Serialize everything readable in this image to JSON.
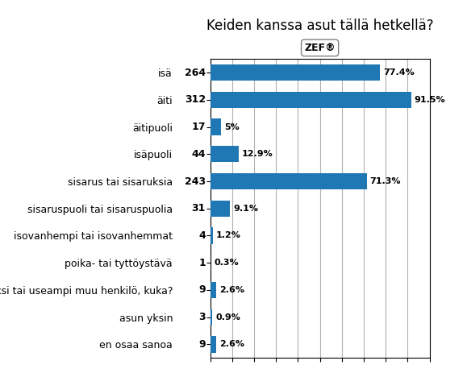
{
  "chart_data": {
    "type": "bar",
    "orientation": "horizontal",
    "title": "Keiden kanssa asut tällä hetkellä?",
    "categories": [
      "isä",
      "äiti",
      "äitipuoli",
      "isäpuoli",
      "sisarus tai sisaruksia",
      "sisaruspuoli tai sisaruspuolia",
      "isovanhempi tai isovanhemmat",
      "poika- tai tyttöystävä",
      "yksi tai useampi muu henkilö, kuka?",
      "asun yksin",
      "en osaa sanoa"
    ],
    "values": [
      77.4,
      91.5,
      5.0,
      12.9,
      71.3,
      9.1,
      1.2,
      0.3,
      2.6,
      0.9,
      2.6
    ],
    "value_labels": [
      "77.4%",
      "91.5%",
      "5%",
      "12.9%",
      "71.3%",
      "9.1%",
      "1.2%",
      "0.3%",
      "2.6%",
      "0.9%",
      "2.6%"
    ],
    "data_labels": true,
    "counts": [
      264,
      312,
      17,
      44,
      243,
      31,
      4,
      1,
      9,
      3,
      9
    ],
    "annotations": [
      "ZEF®"
    ],
    "xlim": [
      0,
      100
    ],
    "xticks": [
      0,
      10,
      20,
      30,
      40,
      50,
      60,
      70,
      80,
      90,
      100
    ],
    "grid": true,
    "tick_labels": "y"
  }
}
